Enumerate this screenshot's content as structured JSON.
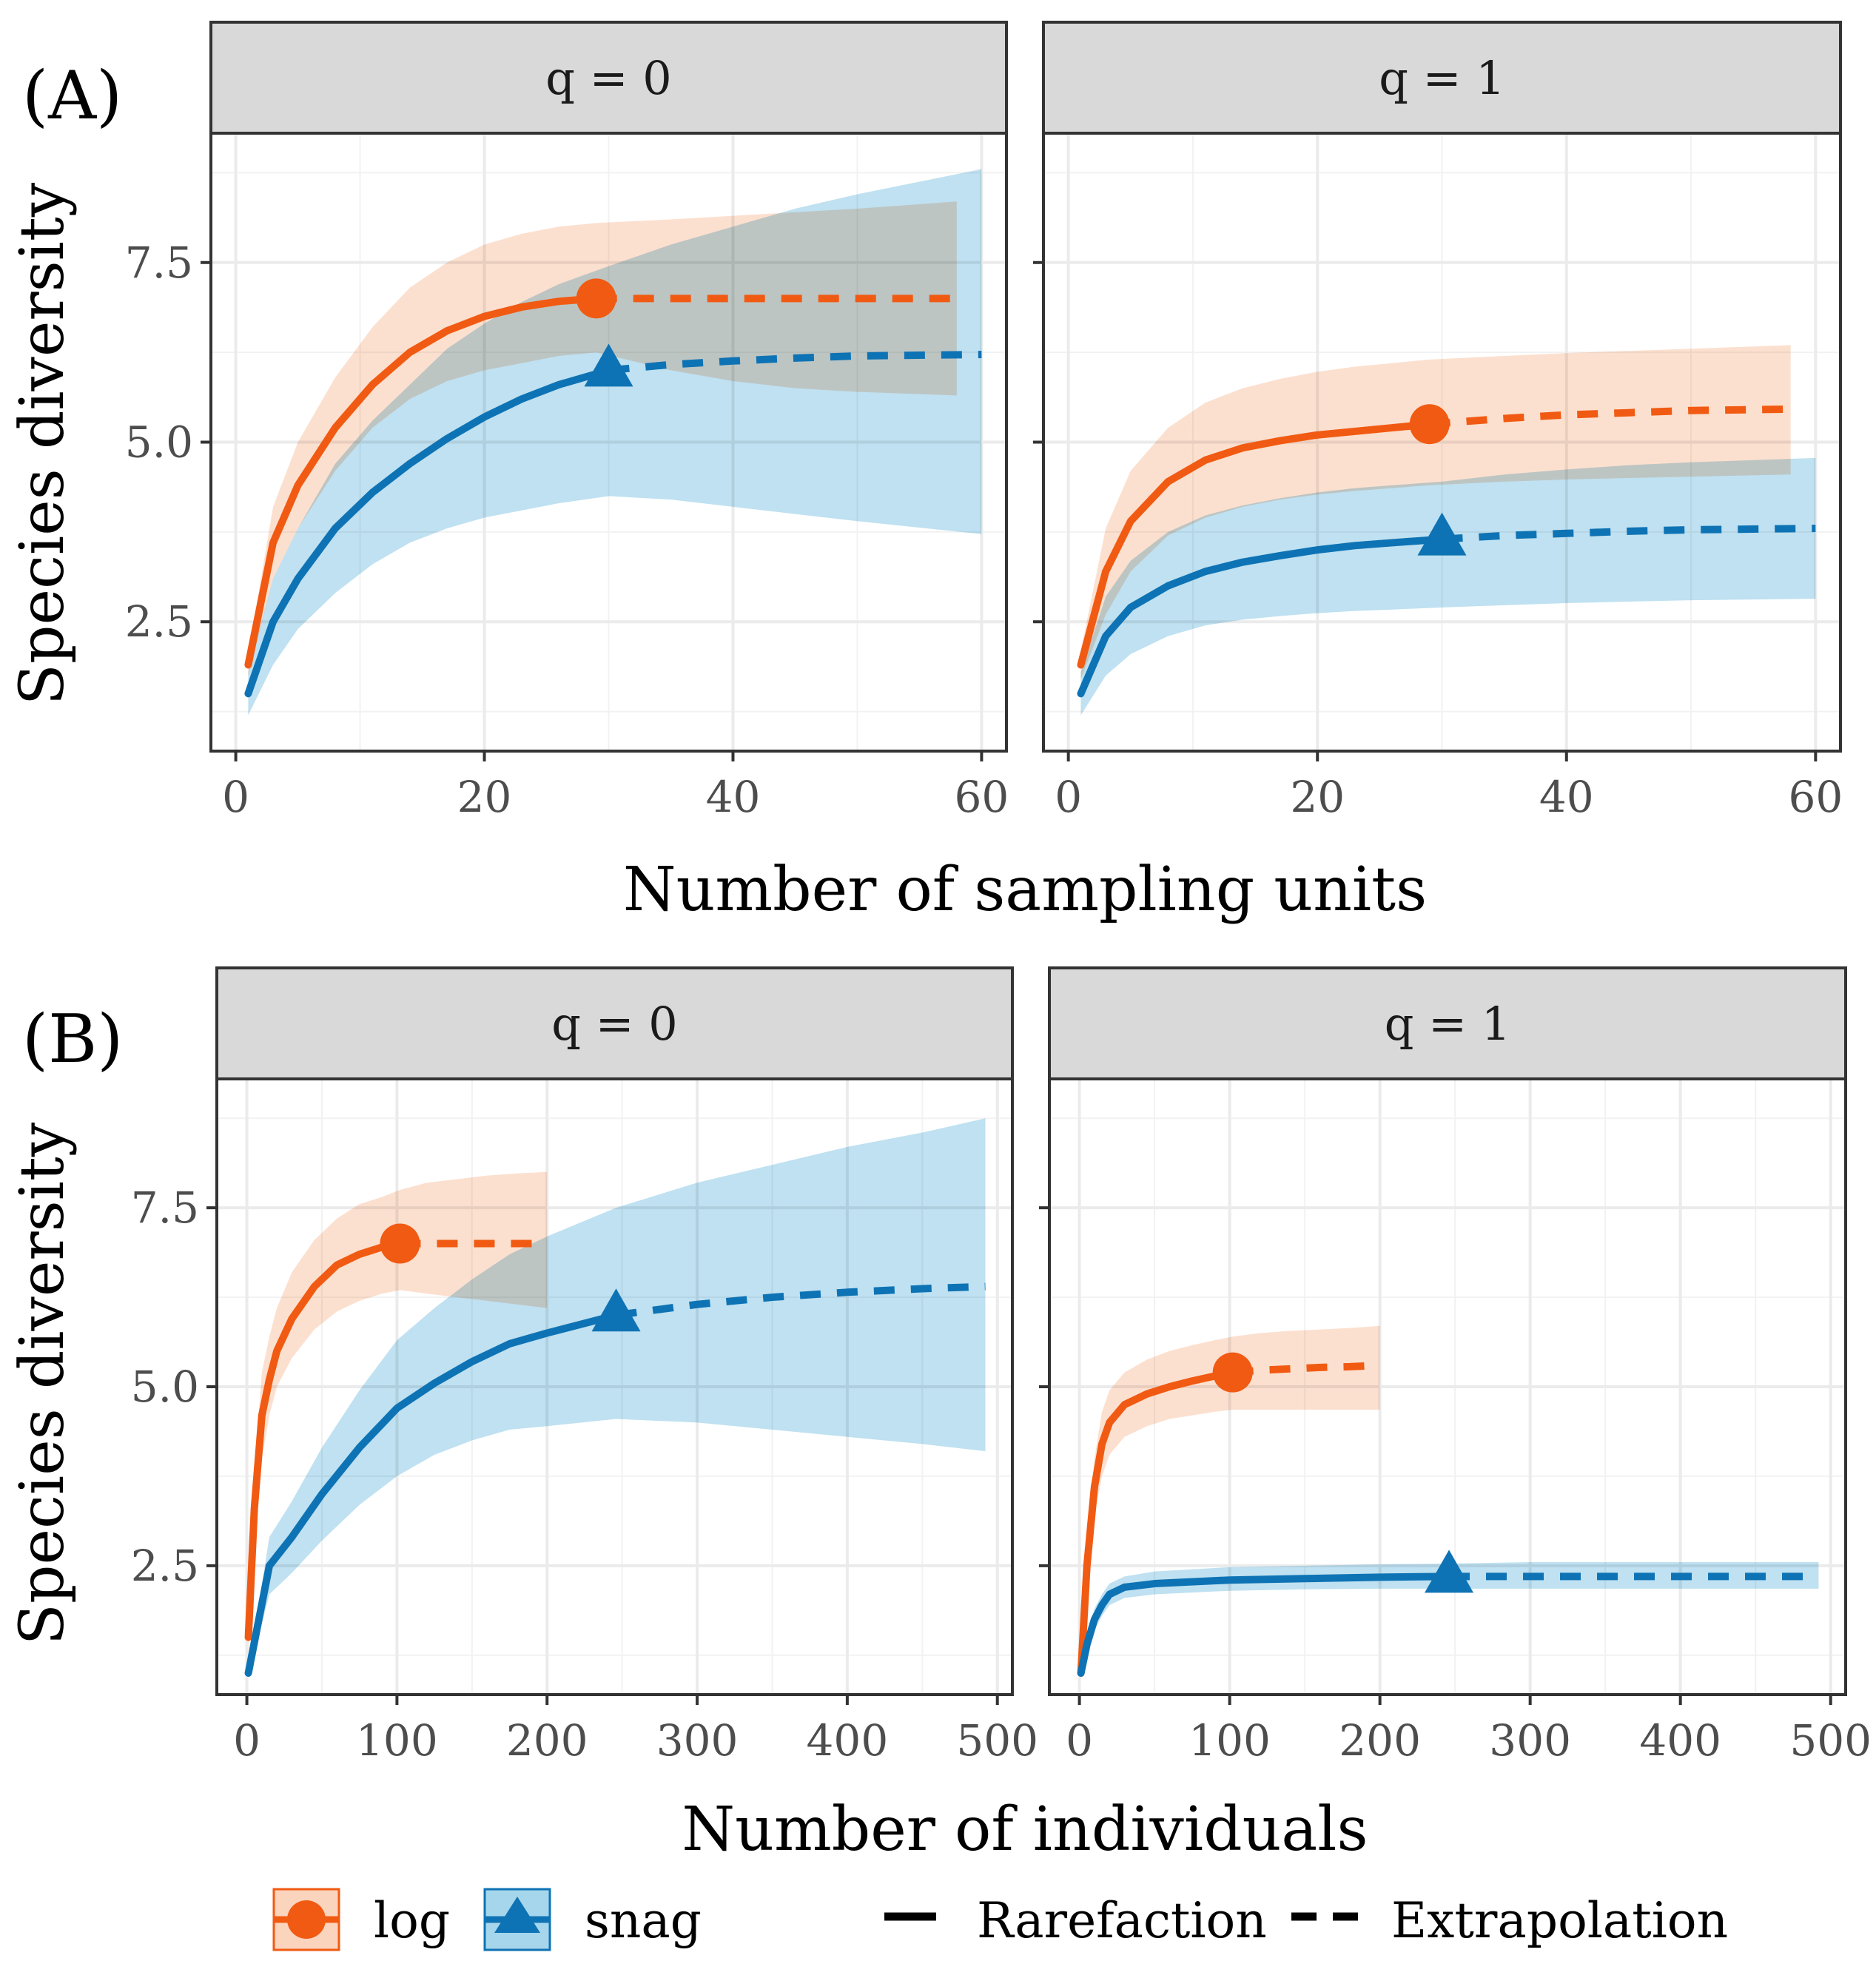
{
  "colors": {
    "log": "#f15a12",
    "snag": "#0e73b4",
    "log_fill": "#fbd4bd",
    "snag_fill": "#a6d6ec",
    "grid": "#ebebeb",
    "strip_bg": "#d9d9d9",
    "border": "#333333"
  },
  "rows": [
    {
      "tag": "(A)",
      "x_title": "Number of sampling units",
      "y_title": "Species diversity",
      "panels": [
        {
          "strip": "q = 0",
          "xlim": [
            -2,
            62
          ],
          "ylim": [
            0.7,
            9.3
          ],
          "x_ticks": [
            0,
            20,
            40,
            60
          ],
          "y_ticks": [
            2.5,
            5.0,
            7.5
          ]
        },
        {
          "strip": "q = 1",
          "xlim": [
            -2,
            62
          ],
          "ylim": [
            0.7,
            9.3
          ],
          "x_ticks": [
            0,
            20,
            40,
            60
          ],
          "y_ticks": [
            2.5,
            5.0,
            7.5
          ]
        }
      ]
    },
    {
      "tag": "(B)",
      "x_title": "Number of individuals",
      "y_title": "Species diversity",
      "panels": [
        {
          "strip": "q = 0",
          "xlim": [
            -20,
            510
          ],
          "ylim": [
            0.7,
            9.3
          ],
          "x_ticks": [
            0,
            100,
            200,
            300,
            400,
            500
          ],
          "y_ticks": [
            2.5,
            5.0,
            7.5
          ]
        },
        {
          "strip": "q = 1",
          "xlim": [
            -20,
            510
          ],
          "ylim": [
            0.7,
            9.3
          ],
          "x_ticks": [
            0,
            100,
            200,
            300,
            400,
            500
          ],
          "y_ticks": [
            2.5,
            5.0,
            7.5
          ]
        }
      ]
    }
  ],
  "chart_data": [
    {
      "type": "line",
      "title": "(A) q = 0",
      "xlabel": "Number of sampling units",
      "ylabel": "Species diversity",
      "series": [
        {
          "name": "log",
          "observed": {
            "x": 29,
            "y": 7.0
          },
          "rarefaction": {
            "x": [
              1,
              3,
              5,
              8,
              11,
              14,
              17,
              20,
              23,
              26,
              29
            ],
            "y": [
              1.9,
              3.6,
              4.4,
              5.2,
              5.8,
              6.25,
              6.55,
              6.75,
              6.88,
              6.96,
              7.0
            ]
          },
          "extrapolation": {
            "x": [
              29,
              35,
              40,
              45,
              50,
              58
            ],
            "y": [
              7.0,
              7.0,
              7.0,
              7.0,
              7.0,
              7.0
            ]
          },
          "lower": [
            1.75,
            3.1,
            3.8,
            4.6,
            5.2,
            5.6,
            5.85,
            6.0,
            6.1,
            6.2,
            6.25,
            6.0,
            5.85,
            5.75,
            5.7,
            5.65
          ],
          "upper": [
            2.05,
            4.1,
            5.0,
            5.9,
            6.6,
            7.15,
            7.5,
            7.75,
            7.9,
            8.0,
            8.05,
            8.1,
            8.15,
            8.2,
            8.25,
            8.35
          ]
        },
        {
          "name": "snag",
          "observed": {
            "x": 30,
            "y": 6.0
          },
          "rarefaction": {
            "x": [
              1,
              3,
              5,
              8,
              11,
              14,
              17,
              20,
              23,
              26,
              30
            ],
            "y": [
              1.5,
              2.5,
              3.1,
              3.8,
              4.3,
              4.7,
              5.05,
              5.35,
              5.6,
              5.8,
              6.0
            ]
          },
          "extrapolation": {
            "x": [
              30,
              35,
              40,
              45,
              50,
              60
            ],
            "y": [
              6.0,
              6.08,
              6.13,
              6.17,
              6.2,
              6.22
            ]
          },
          "lower": [
            1.2,
            1.9,
            2.4,
            2.9,
            3.3,
            3.6,
            3.8,
            3.95,
            4.05,
            4.15,
            4.25,
            4.2,
            4.1,
            4.0,
            3.9,
            3.72
          ],
          "upper": [
            1.8,
            3.1,
            3.8,
            4.7,
            5.3,
            5.8,
            6.3,
            6.65,
            6.95,
            7.2,
            7.45,
            7.75,
            8.0,
            8.25,
            8.45,
            8.8
          ]
        }
      ]
    },
    {
      "type": "line",
      "title": "(A) q = 1",
      "xlabel": "Number of sampling units",
      "ylabel": "Species diversity",
      "series": [
        {
          "name": "log",
          "observed": {
            "x": 29,
            "y": 5.25
          },
          "rarefaction": {
            "x": [
              1,
              3,
              5,
              8,
              11,
              14,
              17,
              20,
              23,
              26,
              29
            ],
            "y": [
              1.9,
              3.2,
              3.9,
              4.45,
              4.75,
              4.92,
              5.02,
              5.1,
              5.15,
              5.2,
              5.25
            ]
          },
          "extrapolation": {
            "x": [
              29,
              35,
              40,
              45,
              50,
              58
            ],
            "y": [
              5.25,
              5.33,
              5.38,
              5.41,
              5.44,
              5.46
            ]
          },
          "lower": [
            1.7,
            2.6,
            3.2,
            3.7,
            3.95,
            4.1,
            4.2,
            4.27,
            4.32,
            4.36,
            4.4,
            4.45,
            4.48,
            4.5,
            4.52,
            4.55
          ],
          "upper": [
            2.1,
            3.8,
            4.6,
            5.2,
            5.55,
            5.75,
            5.88,
            5.98,
            6.05,
            6.1,
            6.15,
            6.2,
            6.24,
            6.27,
            6.3,
            6.35
          ]
        },
        {
          "name": "snag",
          "observed": {
            "x": 30,
            "y": 3.65
          },
          "rarefaction": {
            "x": [
              1,
              3,
              5,
              8,
              11,
              14,
              17,
              20,
              23,
              26,
              30
            ],
            "y": [
              1.5,
              2.3,
              2.7,
              3.0,
              3.2,
              3.33,
              3.42,
              3.5,
              3.56,
              3.6,
              3.65
            ]
          },
          "extrapolation": {
            "x": [
              30,
              35,
              40,
              45,
              50,
              60
            ],
            "y": [
              3.65,
              3.7,
              3.73,
              3.76,
              3.78,
              3.8
            ]
          },
          "lower": [
            1.2,
            1.75,
            2.05,
            2.3,
            2.45,
            2.53,
            2.58,
            2.62,
            2.65,
            2.67,
            2.7,
            2.73,
            2.76,
            2.78,
            2.8,
            2.82
          ],
          "upper": [
            1.8,
            2.85,
            3.35,
            3.75,
            3.98,
            4.12,
            4.22,
            4.3,
            4.36,
            4.4,
            4.45,
            4.55,
            4.62,
            4.68,
            4.72,
            4.78
          ]
        }
      ]
    },
    {
      "type": "line",
      "title": "(B) q = 0",
      "xlabel": "Number of individuals",
      "ylabel": "Species diversity",
      "series": [
        {
          "name": "log",
          "observed": {
            "x": 102,
            "y": 7.0
          },
          "rarefaction": {
            "x": [
              1,
              5,
              10,
              15,
              20,
              30,
              45,
              60,
              75,
              90,
              102
            ],
            "y": [
              1.5,
              3.3,
              4.6,
              5.1,
              5.5,
              5.95,
              6.4,
              6.7,
              6.85,
              6.95,
              7.0
            ]
          },
          "extrapolation": {
            "x": [
              102,
              120,
              140,
              160,
              180,
              200
            ],
            "y": [
              7.0,
              7.0,
              7.0,
              7.0,
              7.0,
              7.0
            ]
          },
          "lower": [
            1.3,
            2.8,
            4.0,
            4.6,
            5.0,
            5.4,
            5.8,
            6.05,
            6.2,
            6.3,
            6.35,
            6.3,
            6.25,
            6.2,
            6.15,
            6.1
          ],
          "upper": [
            1.7,
            3.8,
            5.2,
            5.7,
            6.1,
            6.6,
            7.05,
            7.35,
            7.55,
            7.65,
            7.75,
            7.85,
            7.9,
            7.95,
            7.98,
            8.0
          ]
        },
        {
          "name": "snag",
          "observed": {
            "x": 246,
            "y": 6.0
          },
          "rarefaction": {
            "x": [
              1,
              15,
              30,
              50,
              75,
              100,
              125,
              150,
              175,
              200,
              246
            ],
            "y": [
              1.0,
              2.5,
              2.9,
              3.5,
              4.15,
              4.7,
              5.05,
              5.35,
              5.6,
              5.75,
              6.0
            ]
          },
          "extrapolation": {
            "x": [
              246,
              300,
              350,
              400,
              450,
              492
            ],
            "y": [
              6.0,
              6.15,
              6.25,
              6.32,
              6.37,
              6.4
            ]
          },
          "lower": [
            0.95,
            2.1,
            2.4,
            2.85,
            3.35,
            3.75,
            4.05,
            4.25,
            4.4,
            4.45,
            4.55,
            4.5,
            4.4,
            4.3,
            4.2,
            4.1
          ],
          "upper": [
            1.05,
            2.9,
            3.4,
            4.15,
            4.95,
            5.65,
            6.1,
            6.5,
            6.85,
            7.1,
            7.5,
            7.85,
            8.1,
            8.35,
            8.55,
            8.75
          ]
        }
      ]
    },
    {
      "type": "line",
      "title": "(B) q = 1",
      "xlabel": "Number of individuals",
      "ylabel": "Species diversity",
      "series": [
        {
          "name": "log",
          "observed": {
            "x": 102,
            "y": 5.2
          },
          "rarefaction": {
            "x": [
              1,
              5,
              10,
              15,
              20,
              30,
              45,
              60,
              75,
              90,
              102
            ],
            "y": [
              1.0,
              2.5,
              3.6,
              4.2,
              4.5,
              4.75,
              4.9,
              5.0,
              5.08,
              5.15,
              5.2
            ]
          },
          "extrapolation": {
            "x": [
              102,
              120,
              140,
              160,
              180,
              200
            ],
            "y": [
              5.2,
              5.23,
              5.25,
              5.27,
              5.28,
              5.3
            ]
          },
          "lower": [
            0.95,
            2.2,
            3.2,
            3.75,
            4.05,
            4.3,
            4.45,
            4.55,
            4.6,
            4.65,
            4.68,
            4.68,
            4.68,
            4.68,
            4.68,
            4.68
          ],
          "upper": [
            1.05,
            2.8,
            4.0,
            4.65,
            4.95,
            5.2,
            5.38,
            5.5,
            5.58,
            5.65,
            5.7,
            5.75,
            5.78,
            5.8,
            5.82,
            5.85
          ]
        },
        {
          "name": "snag",
          "observed": {
            "x": 246,
            "y": 2.35
          },
          "rarefaction": {
            "x": [
              1,
              5,
              10,
              15,
              20,
              30,
              50,
              100,
              150,
              200,
              246
            ],
            "y": [
              1.0,
              1.4,
              1.75,
              1.95,
              2.1,
              2.2,
              2.25,
              2.3,
              2.32,
              2.34,
              2.35
            ]
          },
          "extrapolation": {
            "x": [
              246,
              300,
              350,
              400,
              450,
              492
            ],
            "y": [
              2.35,
              2.35,
              2.35,
              2.35,
              2.35,
              2.35
            ]
          },
          "lower": [
            0.95,
            1.3,
            1.6,
            1.8,
            1.95,
            2.05,
            2.1,
            2.15,
            2.17,
            2.18,
            2.18,
            2.18,
            2.18,
            2.18,
            2.18,
            2.18
          ],
          "upper": [
            1.05,
            1.5,
            1.9,
            2.1,
            2.25,
            2.35,
            2.42,
            2.48,
            2.5,
            2.52,
            2.53,
            2.55,
            2.55,
            2.55,
            2.55,
            2.55
          ]
        }
      ]
    }
  ],
  "legend": {
    "items": [
      {
        "key": "log",
        "label": "log"
      },
      {
        "key": "snag",
        "label": "snag"
      },
      {
        "key": "rarefaction",
        "label": "Rarefaction"
      },
      {
        "key": "extrapolation",
        "label": "Extrapolation"
      }
    ]
  }
}
